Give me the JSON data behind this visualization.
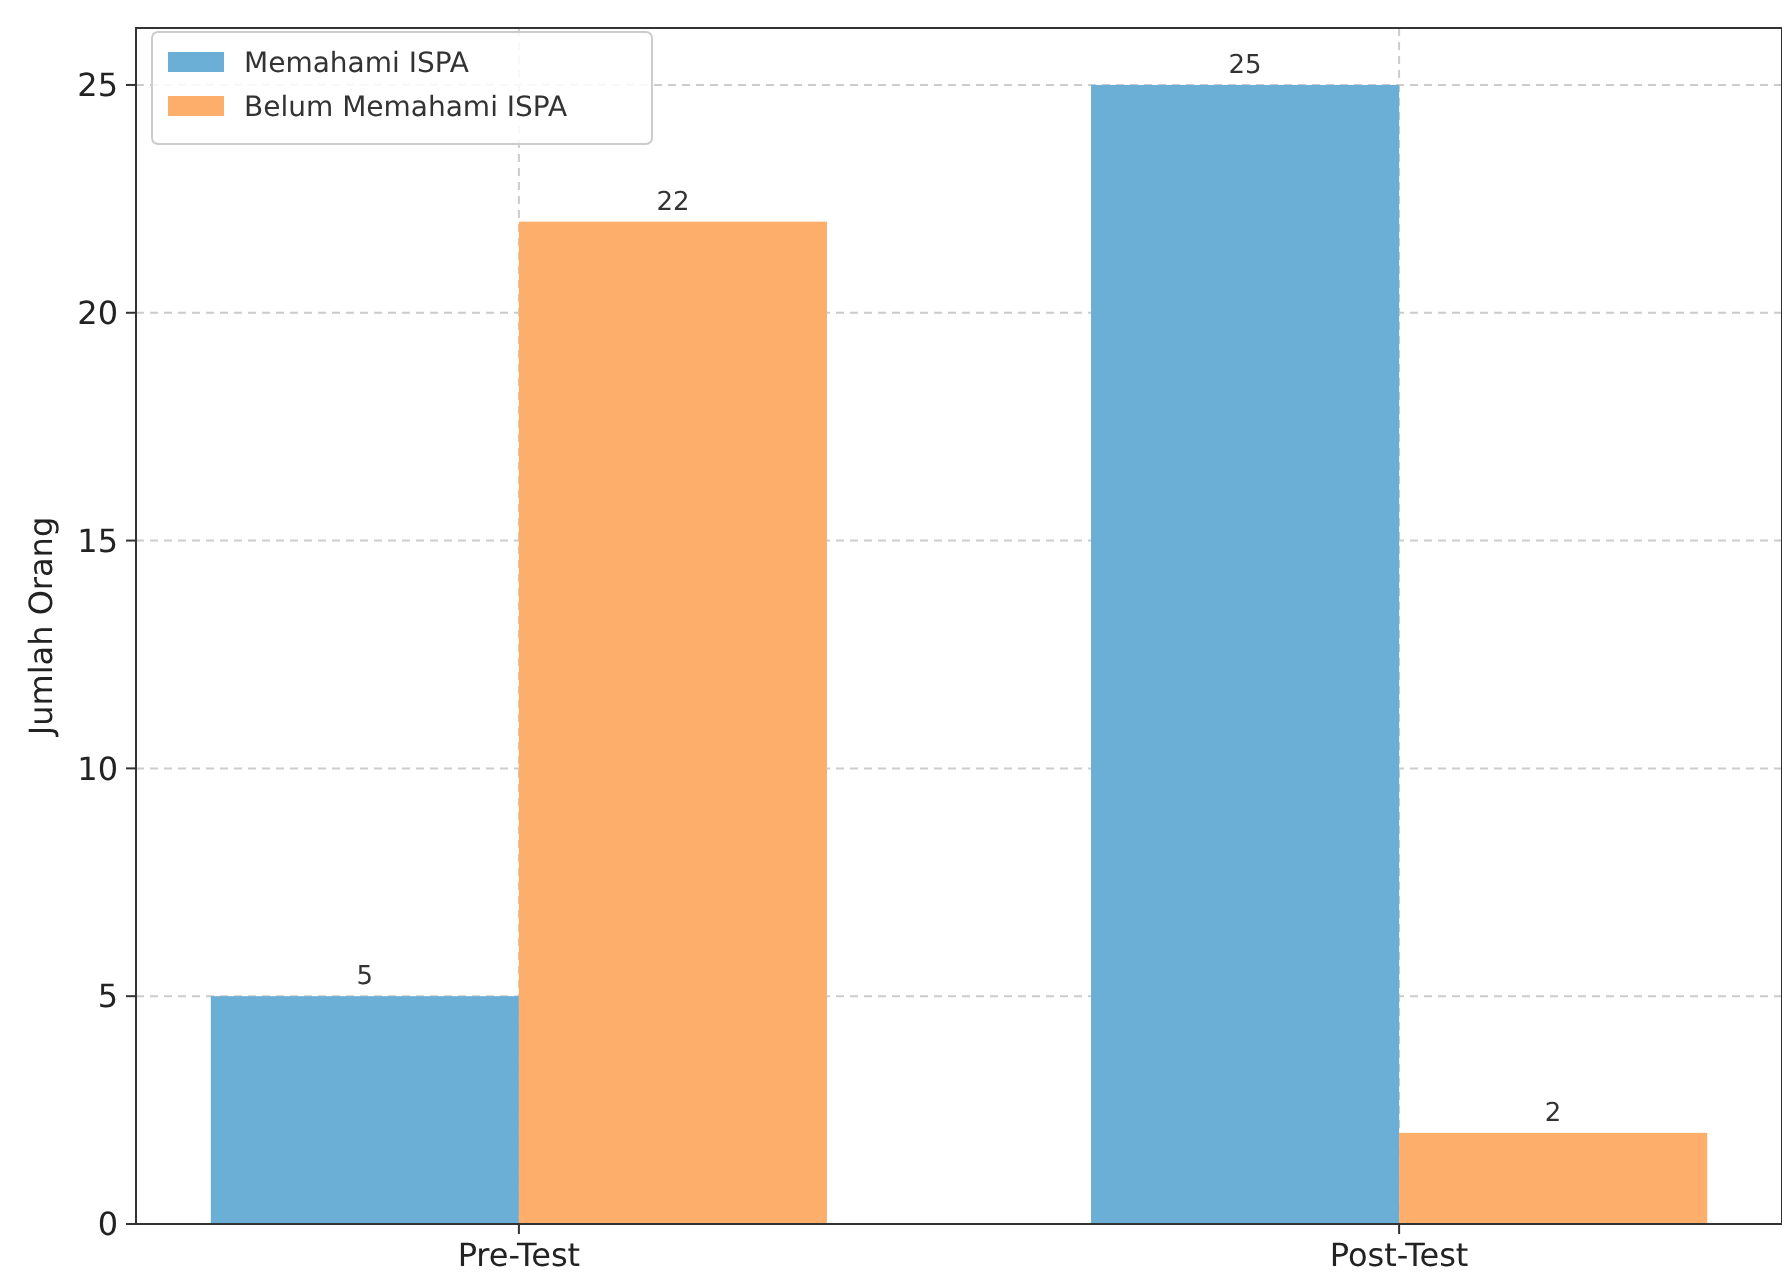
{
  "chart_data": {
    "type": "bar",
    "ylabel": "Jumlah Orang",
    "categories": [
      "Pre-Test",
      "Post-Test"
    ],
    "series": [
      {
        "name": "Memahami ISPA",
        "color": "#6baed6",
        "values": [
          5,
          25
        ]
      },
      {
        "name": "Belum Memahami ISPA",
        "color": "#fdae6b",
        "values": [
          22,
          2
        ]
      }
    ],
    "ylim": [
      0,
      26.25
    ],
    "yticks": [
      0,
      5,
      10,
      15,
      20,
      25
    ],
    "grid": true,
    "legend": "top left",
    "data_labels": true
  }
}
